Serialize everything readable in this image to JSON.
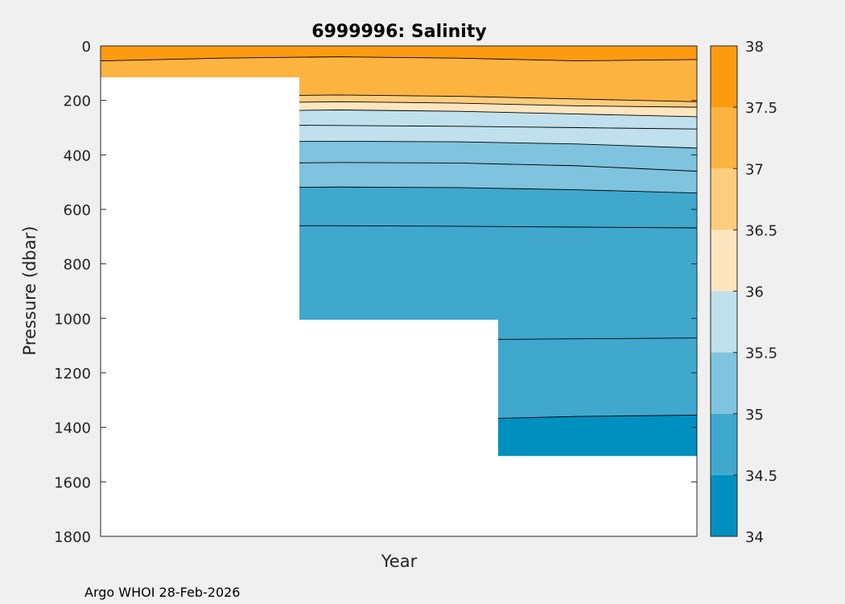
{
  "chart_data": {
    "type": "heatmap",
    "title": "6999996:  Salinity",
    "xlabel": "Year",
    "ylabel": "Pressure (dbar)",
    "ylim": [
      0,
      1800
    ],
    "y_reversed": true,
    "yticks": [
      "0",
      "200",
      "400",
      "600",
      "800",
      "1000",
      "1200",
      "1400",
      "1600",
      "1800"
    ],
    "xticks": [],
    "colorbar": {
      "range": [
        34,
        38
      ],
      "ticks": [
        "34",
        "34.5",
        "35",
        "35.5",
        "36",
        "36.5",
        "37",
        "37.5",
        "38"
      ],
      "levels": [
        {
          "from": 34.0,
          "to": 34.5,
          "color": "#0090bf"
        },
        {
          "from": 34.5,
          "to": 35.0,
          "color": "#3fa8cc"
        },
        {
          "from": 35.0,
          "to": 35.5,
          "color": "#7fc3de"
        },
        {
          "from": 35.5,
          "to": 36.0,
          "color": "#bfe0ec"
        },
        {
          "from": 36.0,
          "to": 36.5,
          "color": "#fde6bf"
        },
        {
          "from": 36.5,
          "to": 37.0,
          "color": "#fdcd7f"
        },
        {
          "from": 37.0,
          "to": 37.5,
          "color": "#fdb340"
        },
        {
          "from": 37.5,
          "to": 38.0,
          "color": "#fd9b10"
        }
      ]
    },
    "profiles": [
      {
        "max_pressure": 115
      },
      {
        "max_pressure": 1005
      },
      {
        "max_pressure": 1505
      }
    ],
    "contour_boundaries": [
      {
        "level": 34.5,
        "depth": [
          1395,
          1390,
          1380,
          1370,
          1360,
          1355
        ]
      },
      {
        "level": 34.5,
        "depth": [
          1085,
          1082,
          1080,
          1078,
          1075,
          1072
        ]
      },
      {
        "level": 34.5,
        "depth": [
          660,
          660,
          660,
          662,
          665,
          668
        ]
      },
      {
        "level": 35.0,
        "depth": [
          525,
          520,
          518,
          520,
          528,
          540
        ]
      },
      {
        "level": 35.0,
        "depth": [
          440,
          432,
          428,
          430,
          440,
          460
        ]
      },
      {
        "level": 35.5,
        "depth": [
          355,
          352,
          350,
          352,
          360,
          375
        ]
      },
      {
        "level": 35.5,
        "depth": [
          290,
          290,
          292,
          295,
          300,
          305
        ]
      },
      {
        "level": 36.0,
        "depth": [
          245,
          240,
          235,
          240,
          250,
          260
        ]
      },
      {
        "level": 36.5,
        "depth": [
          215,
          210,
          205,
          210,
          220,
          225
        ]
      },
      {
        "level": 37.0,
        "depth": [
          190,
          185,
          180,
          185,
          195,
          205
        ]
      },
      {
        "level": 37.5,
        "depth": [
          55,
          45,
          40,
          45,
          55,
          50
        ]
      }
    ],
    "footer": "Argo WHOI 28-Feb-2026"
  }
}
